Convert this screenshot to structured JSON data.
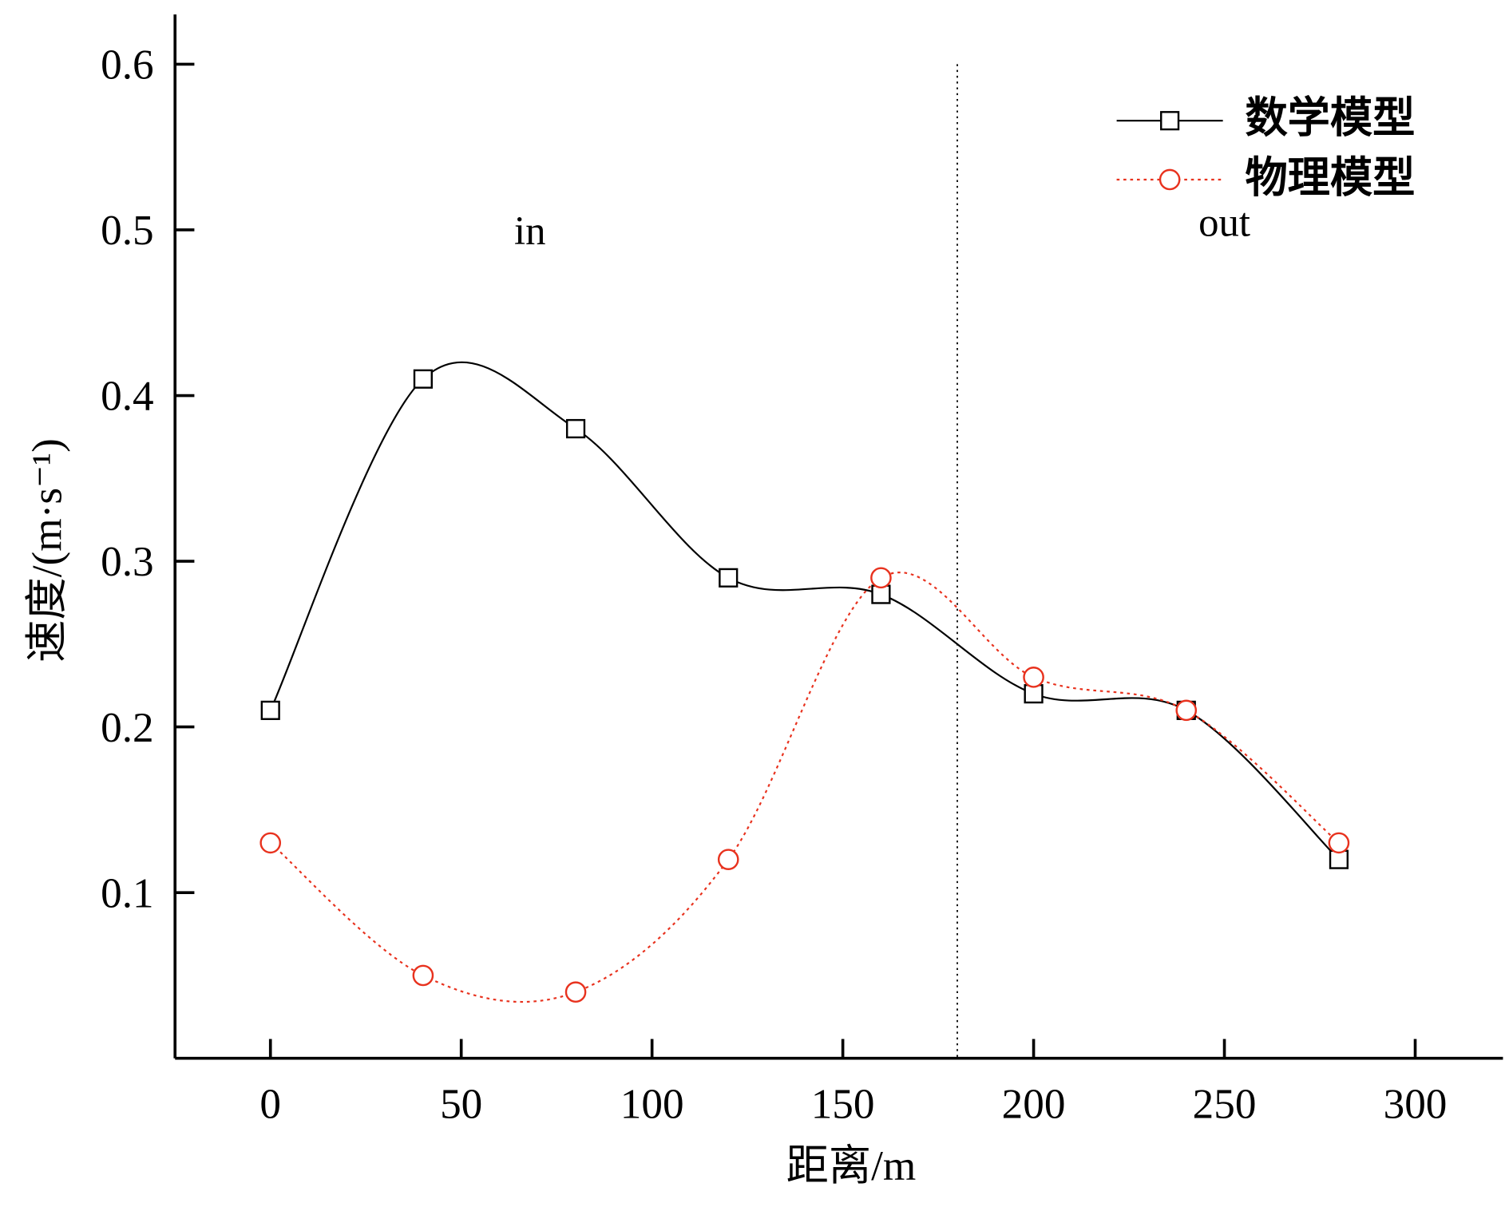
{
  "chart_data": {
    "type": "line",
    "title": "",
    "xlabel": "距离/m",
    "ylabel": "速度/(m·s⁻¹)",
    "xlim": [
      -25,
      323
    ],
    "ylim": [
      0,
      0.63
    ],
    "x_ticks": [
      0,
      50,
      100,
      150,
      200,
      250,
      300
    ],
    "y_ticks": [
      0.1,
      0.2,
      0.3,
      0.4,
      0.5,
      0.6
    ],
    "x_tick_labels": [
      "0",
      "50",
      "100",
      "150",
      "200",
      "250",
      "300"
    ],
    "y_tick_labels": [
      "0.1",
      "0.2",
      "0.3",
      "0.4",
      "0.5",
      "0.6"
    ],
    "grid": false,
    "legend_position": "top-right",
    "x": [
      0,
      40,
      80,
      120,
      160,
      200,
      240,
      280
    ],
    "series": [
      {
        "name": "数学模型",
        "values": [
          0.21,
          0.41,
          0.38,
          0.29,
          0.28,
          0.22,
          0.21,
          0.12
        ],
        "color": "#000000",
        "marker": "square",
        "line": "solid",
        "smooth": true
      },
      {
        "name": "物理模型",
        "values": [
          0.13,
          0.05,
          0.04,
          0.12,
          0.29,
          0.23,
          0.21,
          0.13
        ],
        "color": "#e8321e",
        "marker": "circle",
        "line": "dotted",
        "smooth": true
      }
    ],
    "reference_line": {
      "x": 180,
      "style": "dotted"
    },
    "annotations": [
      {
        "text": "in",
        "x": 68,
        "y": 0.5
      },
      {
        "text": "out",
        "x": 250,
        "y": 0.505
      }
    ]
  }
}
